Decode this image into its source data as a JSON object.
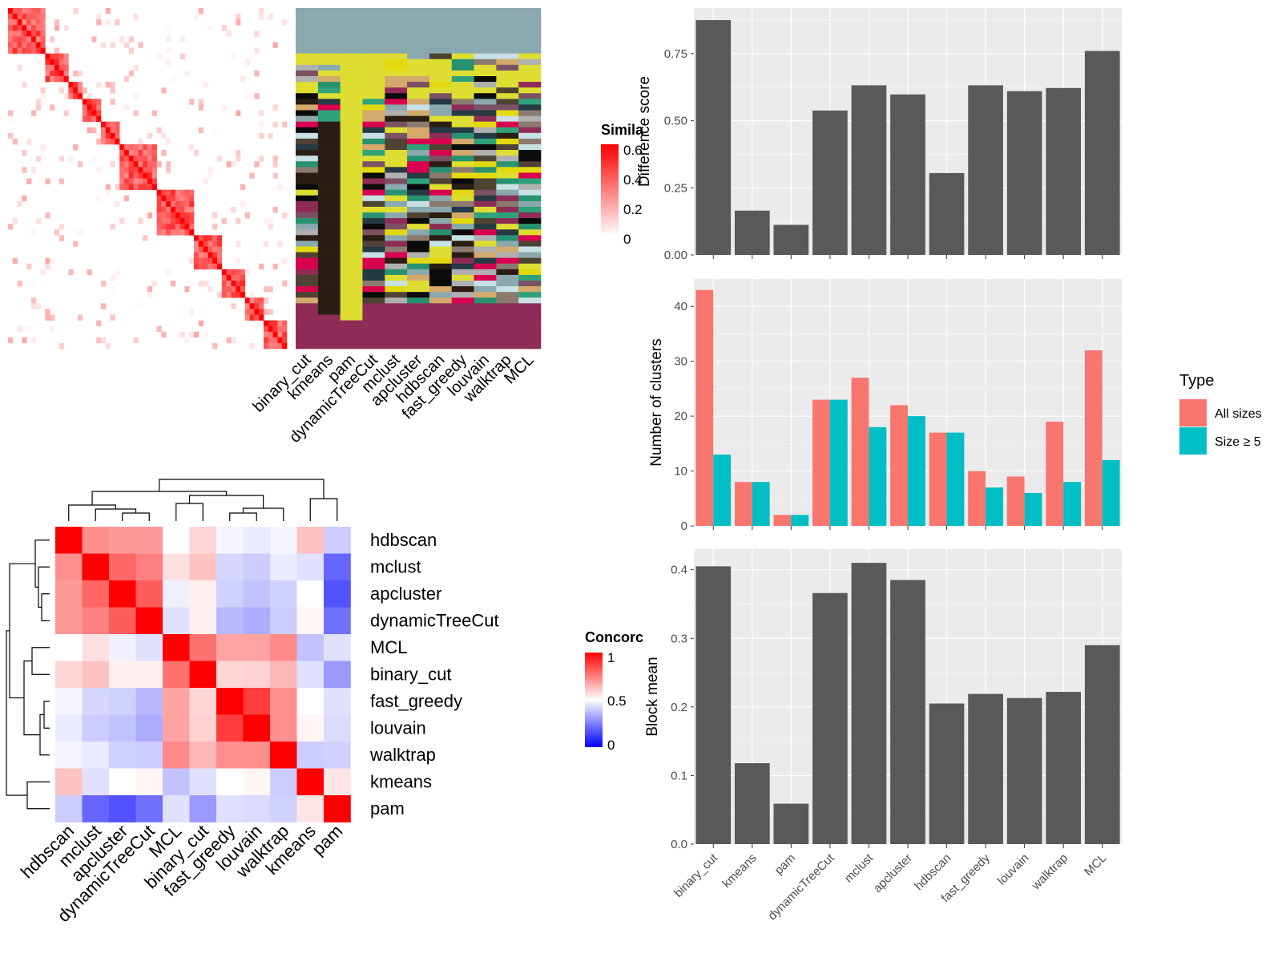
{
  "methods_order": [
    "binary_cut",
    "kmeans",
    "pam",
    "dynamicTreeCut",
    "mclust",
    "apcluster",
    "hdbscan",
    "fast_greedy",
    "louvain",
    "walktrap",
    "MCL"
  ],
  "similarity_legend": {
    "title": "Simila",
    "ticks": [
      "0.6",
      "0.4",
      "0.2",
      "0"
    ],
    "colors": [
      "#ffffff",
      "#ff0000"
    ]
  },
  "concordance_legend": {
    "title": "Concorc",
    "ticks": [
      "1",
      "0.5",
      "0"
    ],
    "colors": [
      "#0000ff",
      "#ffffff",
      "#ff0000"
    ]
  },
  "colors": {
    "panel_bg": "#ebebeb",
    "grid": "#ffffff",
    "bar_fill": "#595959",
    "all_sizes": "#f8766d",
    "size_ge_5": "#00bfc4"
  },
  "chart_data": [
    {
      "type": "heatmap",
      "title": "",
      "description_value_range": [
        0,
        0.6
      ],
      "legend_title": "Simila",
      "columns": [
        "binary_cut",
        "kmeans",
        "pam",
        "dynamicTreeCut",
        "mclust",
        "apcluster",
        "hdbscan",
        "fast_greedy",
        "louvain",
        "walktrap",
        "MCL"
      ],
      "cluster_label_colors": [
        "#8aa9af",
        "#dede32",
        "#4e4333",
        "#243a44",
        "#7b5164",
        "#2a1d12",
        "#b0b0b0",
        "#e3d90f",
        "#8e2c57",
        "#289270",
        "#d4a96c",
        "#0b0b0b",
        "#8b7a6e",
        "#c7e1e5",
        "#d9004f",
        "#2fa279"
      ]
    },
    {
      "type": "heatmap",
      "title": "",
      "legend_title": "Concorc",
      "rows": [
        "hdbscan",
        "mclust",
        "apcluster",
        "dynamicTreeCut",
        "MCL",
        "binary_cut",
        "fast_greedy",
        "louvain",
        "walktrap",
        "kmeans",
        "pam"
      ],
      "columns": [
        "hdbscan",
        "mclust",
        "apcluster",
        "dynamicTreeCut",
        "MCL",
        "binary_cut",
        "fast_greedy",
        "louvain",
        "walktrap",
        "kmeans",
        "pam"
      ],
      "values": [
        [
          1.0,
          0.72,
          0.7,
          0.7,
          0.5,
          0.58,
          0.48,
          0.46,
          0.48,
          0.62,
          0.4
        ],
        [
          0.72,
          1.0,
          0.8,
          0.75,
          0.56,
          0.62,
          0.42,
          0.4,
          0.46,
          0.44,
          0.2
        ],
        [
          0.7,
          0.8,
          1.0,
          0.82,
          0.47,
          0.53,
          0.41,
          0.38,
          0.41,
          0.5,
          0.16
        ],
        [
          0.7,
          0.75,
          0.82,
          1.0,
          0.44,
          0.53,
          0.36,
          0.34,
          0.4,
          0.52,
          0.22
        ],
        [
          0.5,
          0.56,
          0.47,
          0.44,
          1.0,
          0.78,
          0.68,
          0.68,
          0.73,
          0.38,
          0.44
        ],
        [
          0.58,
          0.62,
          0.53,
          0.53,
          0.78,
          1.0,
          0.58,
          0.59,
          0.64,
          0.44,
          0.3
        ],
        [
          0.48,
          0.42,
          0.41,
          0.36,
          0.68,
          0.58,
          1.0,
          0.88,
          0.72,
          0.5,
          0.44
        ],
        [
          0.46,
          0.4,
          0.38,
          0.34,
          0.68,
          0.59,
          0.88,
          1.0,
          0.72,
          0.52,
          0.43
        ],
        [
          0.48,
          0.46,
          0.41,
          0.4,
          0.73,
          0.64,
          0.72,
          0.72,
          1.0,
          0.4,
          0.41
        ],
        [
          0.62,
          0.44,
          0.5,
          0.52,
          0.38,
          0.44,
          0.5,
          0.52,
          0.4,
          1.0,
          0.55
        ],
        [
          0.4,
          0.2,
          0.16,
          0.22,
          0.44,
          0.3,
          0.44,
          0.43,
          0.41,
          0.55,
          1.0
        ]
      ],
      "ylim": [
        0,
        1
      ]
    },
    {
      "type": "bar",
      "title": "",
      "xlabel": "",
      "ylabel": "Difference score",
      "categories": [
        "binary_cut",
        "kmeans",
        "pam",
        "dynamicTreeCut",
        "mclust",
        "apcluster",
        "hdbscan",
        "fast_greedy",
        "louvain",
        "walktrap",
        "MCL"
      ],
      "values": [
        0.875,
        0.165,
        0.112,
        0.538,
        0.632,
        0.598,
        0.305,
        0.632,
        0.61,
        0.622,
        0.76
      ],
      "ylim": [
        0,
        0.92
      ],
      "yticks": [
        "0.00",
        "0.25",
        "0.50",
        "0.75"
      ],
      "grid": true
    },
    {
      "type": "bar",
      "title": "",
      "xlabel": "",
      "ylabel": "Number of clusters",
      "categories": [
        "binary_cut",
        "kmeans",
        "pam",
        "dynamicTreeCut",
        "mclust",
        "apcluster",
        "hdbscan",
        "fast_greedy",
        "louvain",
        "walktrap",
        "MCL"
      ],
      "series": [
        {
          "name": "All sizes",
          "values": [
            43,
            8,
            2,
            23,
            27,
            22,
            17,
            10,
            9,
            19,
            32
          ]
        },
        {
          "name": "Size ≥ 5",
          "values": [
            13,
            8,
            2,
            23,
            18,
            20,
            17,
            7,
            6,
            8,
            12
          ]
        }
      ],
      "legend_title": "Type",
      "legend_position": "right",
      "ylim": [
        0,
        45
      ],
      "yticks": [
        "0",
        "10",
        "20",
        "30",
        "40"
      ],
      "grid": true
    },
    {
      "type": "bar",
      "title": "",
      "xlabel": "",
      "ylabel": "Block mean",
      "categories": [
        "binary_cut",
        "kmeans",
        "pam",
        "dynamicTreeCut",
        "mclust",
        "apcluster",
        "hdbscan",
        "fast_greedy",
        "louvain",
        "walktrap",
        "MCL"
      ],
      "values": [
        0.405,
        0.118,
        0.059,
        0.366,
        0.41,
        0.385,
        0.205,
        0.219,
        0.213,
        0.222,
        0.29
      ],
      "ylim": [
        0,
        0.43
      ],
      "yticks": [
        "0.0",
        "0.1",
        "0.2",
        "0.3",
        "0.4"
      ],
      "grid": true
    }
  ]
}
